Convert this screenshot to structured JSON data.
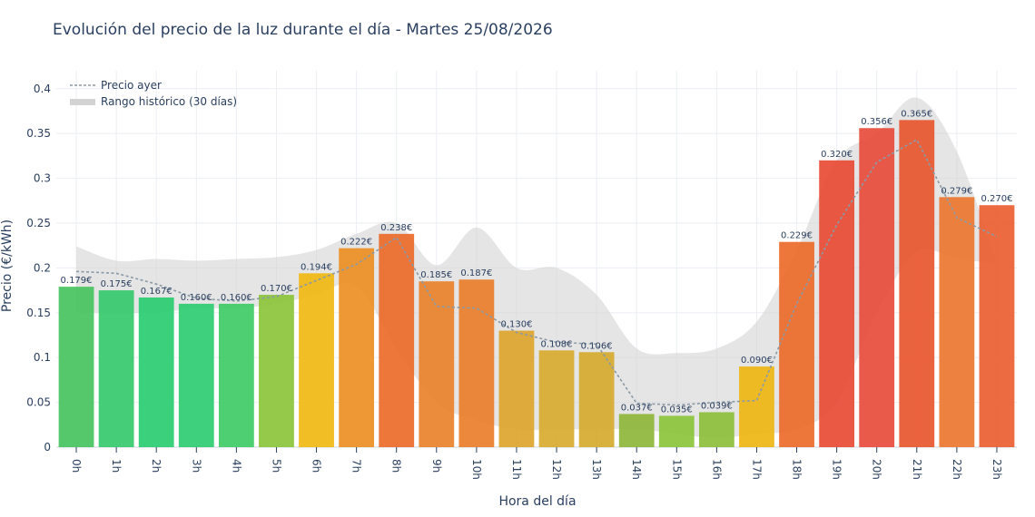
{
  "chart_data": {
    "type": "bar",
    "title": "Evolución del precio de la luz durante el día - Martes 25/08/2026",
    "xlabel": "Hora del día",
    "ylabel": "Precio (€/kWh)",
    "ylim": [
      0,
      0.42
    ],
    "yticks": [
      0,
      0.05,
      0.1,
      0.15,
      0.2,
      0.25,
      0.3,
      0.35,
      0.4
    ],
    "ytick_labels": [
      "0",
      "0.05",
      "0.1",
      "0.15",
      "0.2",
      "0.25",
      "0.3",
      "0.35",
      "0.4"
    ],
    "grid": true,
    "legend_position": "top-left",
    "categories": [
      "0h",
      "1h",
      "2h",
      "3h",
      "4h",
      "5h",
      "6h",
      "7h",
      "8h",
      "9h",
      "10h",
      "11h",
      "12h",
      "13h",
      "14h",
      "15h",
      "16h",
      "17h",
      "18h",
      "19h",
      "20h",
      "21h",
      "22h",
      "23h"
    ],
    "series": [
      {
        "values": [
          0.179,
          0.175,
          0.167,
          0.16,
          0.16,
          0.17,
          0.194,
          0.222,
          0.238,
          0.185,
          0.187,
          0.13,
          0.108,
          0.106,
          0.037,
          0.035,
          0.039,
          0.09,
          0.229,
          0.32,
          0.356,
          0.365,
          0.279,
          0.27
        ],
        "labels": [
          "0.179€",
          "0.175€",
          "0.167€",
          "0.160€",
          "0.160€",
          "0.170€",
          "0.194€",
          "0.222€",
          "0.238€",
          "0.185€",
          "0.187€",
          "0.130€",
          "0.108€",
          "0.106€",
          "0.037€",
          "0.035€",
          "0.039€",
          "0.090€",
          "0.229€",
          "0.320€",
          "0.356€",
          "0.365€",
          "0.279€",
          "0.270€"
        ],
        "colors": [
          "#46c35e",
          "#35c96b",
          "#29cc71",
          "#2ecc71",
          "#3fcb66",
          "#8bc43a",
          "#f0b814",
          "#ed8f24",
          "#ec6a2a",
          "#e9822b",
          "#ea7e2b",
          "#dca52c",
          "#d8aa2f",
          "#d6aa2f",
          "#8fb63a",
          "#8bc43a",
          "#8dbf3b",
          "#efb614",
          "#ec6a2a",
          "#e84b34",
          "#e74c3c",
          "#e8562f",
          "#ec7730",
          "#ea5e30"
        ]
      },
      {
        "name": "Precio ayer",
        "style": "dotted",
        "color": "#8a9aa6",
        "values": [
          0.196,
          0.194,
          0.182,
          0.166,
          0.163,
          0.168,
          0.186,
          0.204,
          0.234,
          0.157,
          0.155,
          0.128,
          0.117,
          0.115,
          0.049,
          0.047,
          0.05,
          0.052,
          0.16,
          0.248,
          0.318,
          0.343,
          0.256,
          0.235
        ]
      },
      {
        "name": "Rango histórico (30 días)",
        "type": "area",
        "color": "#d3d3d3",
        "upper": [
          0.224,
          0.208,
          0.21,
          0.208,
          0.21,
          0.212,
          0.22,
          0.238,
          0.25,
          0.203,
          0.245,
          0.2,
          0.2,
          0.17,
          0.11,
          0.105,
          0.11,
          0.14,
          0.22,
          0.32,
          0.35,
          0.39,
          0.33,
          0.205
        ],
        "lower": [
          0.15,
          0.15,
          0.15,
          0.155,
          0.155,
          0.16,
          0.17,
          0.18,
          0.11,
          0.05,
          0.03,
          0.02,
          0.02,
          0.02,
          0.02,
          0.015,
          0.01,
          0.015,
          0.02,
          0.05,
          0.15,
          0.218,
          0.21,
          0.205
        ]
      }
    ]
  }
}
